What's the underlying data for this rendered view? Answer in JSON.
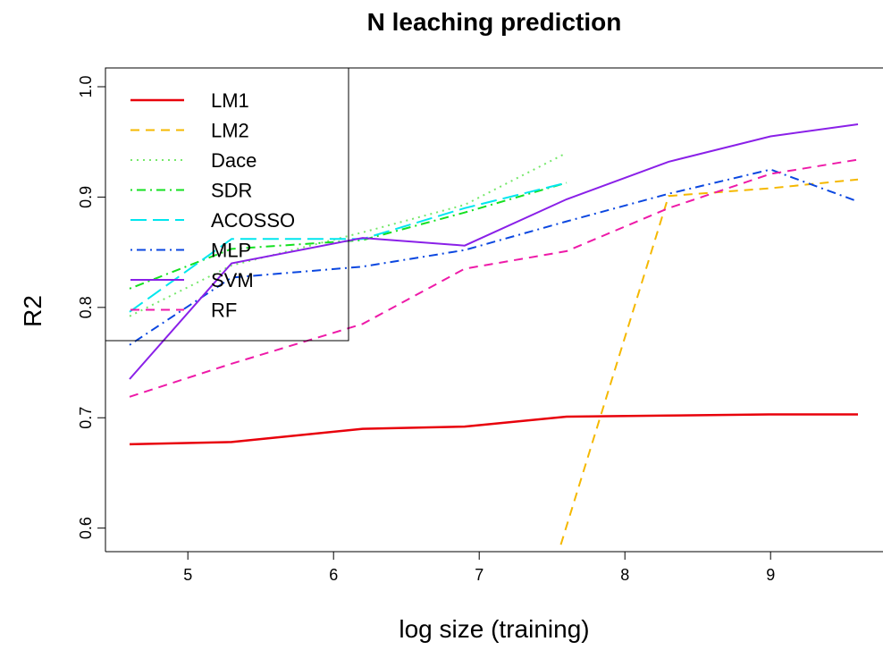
{
  "chart_data": {
    "type": "line",
    "title": "N leaching prediction",
    "xlabel": "log size (training)",
    "ylabel": "R2",
    "xlim": [
      4.6,
      9.6
    ],
    "ylim": [
      0.59,
      1.0
    ],
    "xticks": [
      5,
      6,
      7,
      8,
      9
    ],
    "yticks": [
      0.6,
      0.7,
      0.8,
      0.9,
      1.0
    ],
    "ytick_labels": [
      "0.6",
      "0.7",
      "0.8",
      "0.9",
      "1.0"
    ],
    "grid": false,
    "legend_position": "top-left",
    "series": [
      {
        "name": "LM1",
        "color": "#e8000b",
        "dash": "solid",
        "width": 2.5,
        "x": [
          4.6,
          5.3,
          6.2,
          6.9,
          7.6,
          8.3,
          8.99,
          9.6
        ],
        "y": [
          0.676,
          0.678,
          0.69,
          0.692,
          0.701,
          0.702,
          0.703,
          0.703
        ]
      },
      {
        "name": "LM2",
        "color": "#f5b800",
        "dash": "dashed",
        "width": 2,
        "x": [
          7.56,
          8.3,
          9.0,
          9.6
        ],
        "y": [
          0.585,
          0.901,
          0.908,
          0.916
        ]
      },
      {
        "name": "Dace",
        "color": "#76e86b",
        "dash": "dotted",
        "width": 2,
        "x": [
          4.6,
          5.3,
          6.2,
          6.9,
          7.6
        ],
        "y": [
          0.792,
          0.838,
          0.868,
          0.893,
          0.94
        ]
      },
      {
        "name": "SDR",
        "color": "#14e020",
        "dash": "dotdash",
        "width": 2,
        "x": [
          4.6,
          5.3,
          6.2,
          6.9,
          7.6
        ],
        "y": [
          0.817,
          0.853,
          0.861,
          0.886,
          0.913
        ]
      },
      {
        "name": "ACOSSO",
        "color": "#00e6ee",
        "dash": "longdash",
        "width": 2,
        "x": [
          4.6,
          5.3,
          6.2,
          6.9,
          7.6
        ],
        "y": [
          0.796,
          0.862,
          0.862,
          0.89,
          0.913
        ]
      },
      {
        "name": "MLP",
        "color": "#0b47e0",
        "dash": "dotdash",
        "width": 2,
        "x": [
          4.6,
          5.3,
          6.2,
          6.9,
          7.6,
          8.3,
          9.0,
          9.6
        ],
        "y": [
          0.766,
          0.827,
          0.837,
          0.852,
          0.878,
          0.903,
          0.925,
          0.896
        ]
      },
      {
        "name": "SVM",
        "color": "#8a20e8",
        "dash": "solid",
        "width": 2,
        "x": [
          4.6,
          5.3,
          6.2,
          6.9,
          7.6,
          8.3,
          9.0,
          9.6
        ],
        "y": [
          0.735,
          0.84,
          0.863,
          0.856,
          0.898,
          0.932,
          0.955,
          0.966
        ]
      },
      {
        "name": "RF",
        "color": "#ee1aa8",
        "dash": "dashed",
        "width": 2,
        "x": [
          4.6,
          5.3,
          6.2,
          6.9,
          7.6,
          8.3,
          9.0,
          9.6
        ],
        "y": [
          0.719,
          0.749,
          0.785,
          0.835,
          0.851,
          0.89,
          0.921,
          0.934
        ]
      }
    ]
  }
}
